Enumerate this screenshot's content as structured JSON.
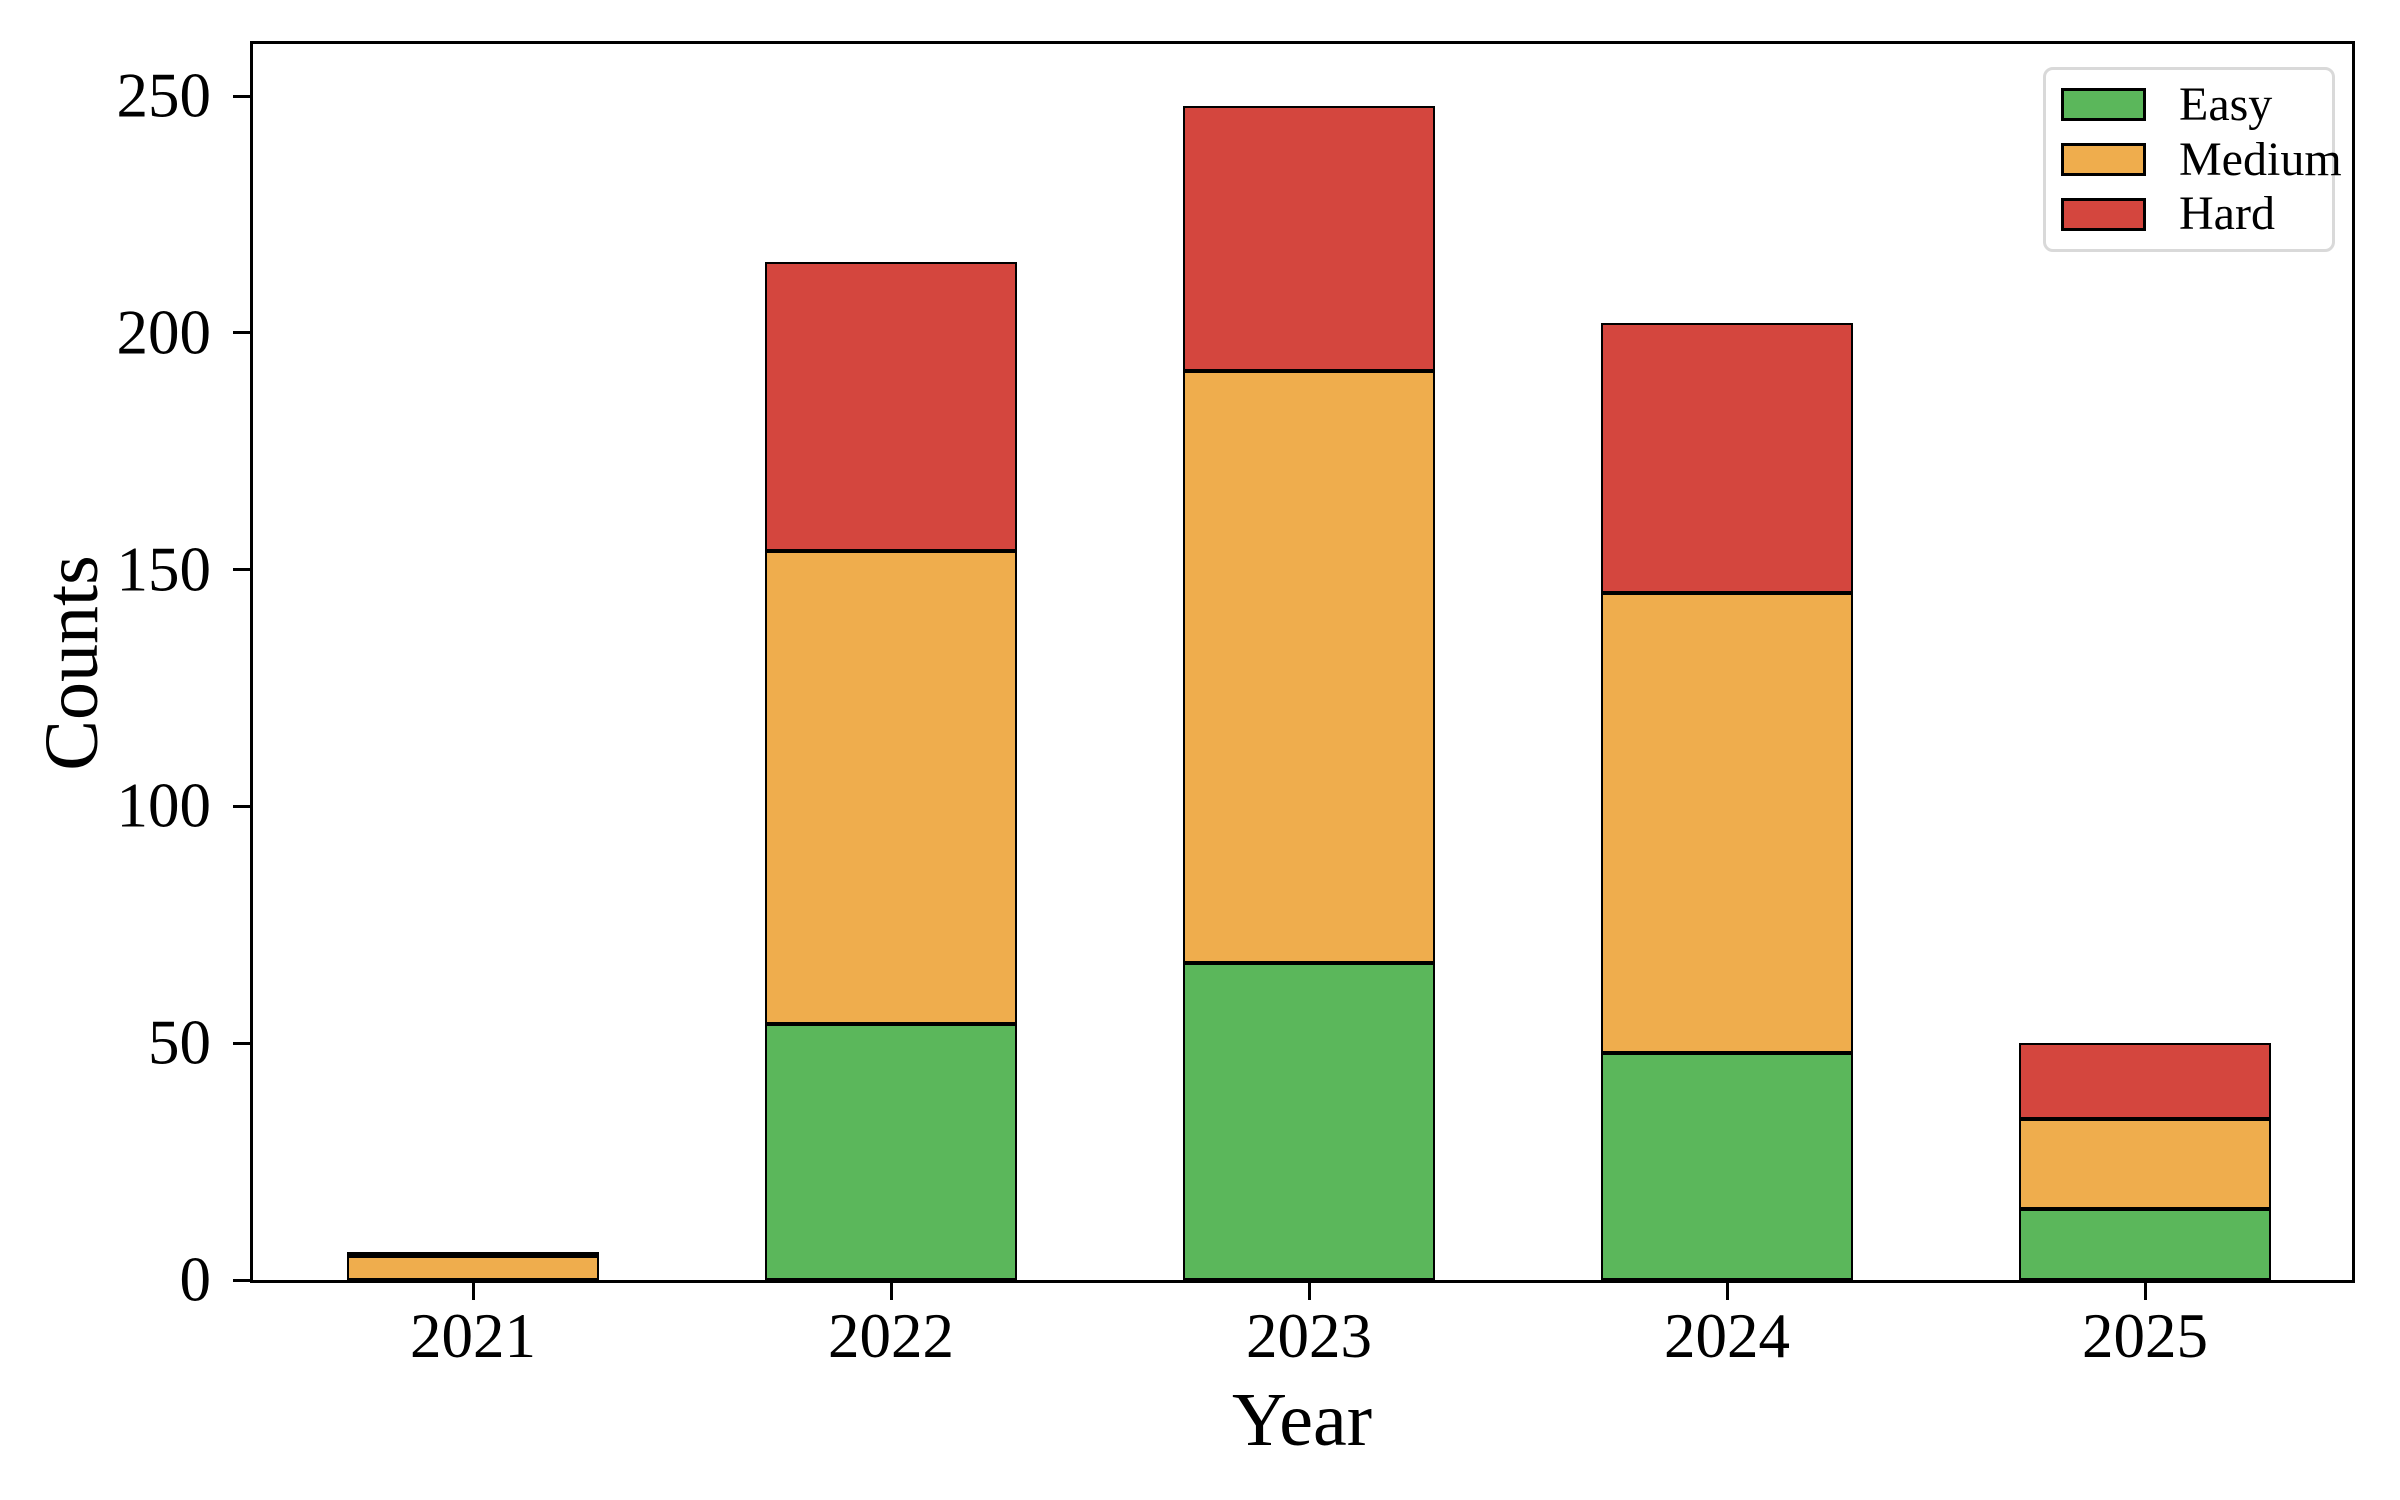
{
  "chart_data": {
    "type": "bar",
    "stacked": true,
    "title": "",
    "xlabel": "Year",
    "ylabel": "Counts",
    "categories": [
      "2021",
      "2022",
      "2023",
      "2024",
      "2025"
    ],
    "series": [
      {
        "name": "Easy",
        "color": "#5bb75b",
        "values": [
          0,
          54,
          67,
          48,
          15
        ]
      },
      {
        "name": "Medium",
        "color": "#efad4d",
        "values": [
          5,
          100,
          125,
          97,
          19
        ]
      },
      {
        "name": "Hard",
        "color": "#d4463e",
        "values": [
          1,
          61,
          56,
          57,
          16
        ]
      }
    ],
    "totals": [
      6,
      215,
      248,
      202,
      50
    ],
    "ylim": [
      0,
      261
    ],
    "yticks": [
      0,
      50,
      100,
      150,
      200,
      250
    ],
    "grid": false,
    "bar_edge_color": "#000000",
    "legend": {
      "position": "upper right",
      "entries": [
        "Easy",
        "Medium",
        "Hard"
      ]
    }
  }
}
